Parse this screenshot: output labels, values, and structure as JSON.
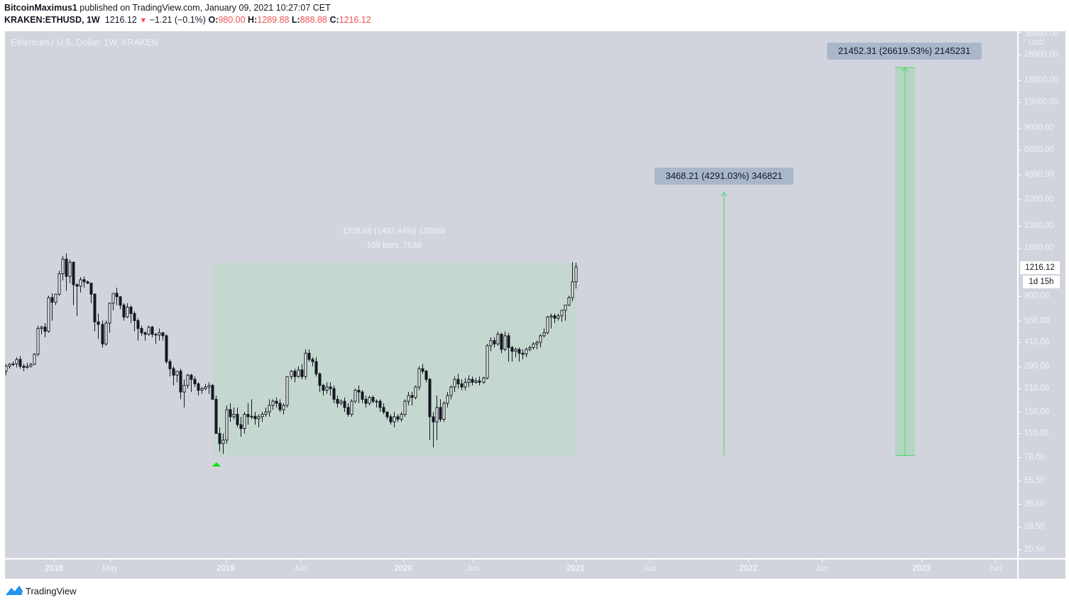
{
  "header": {
    "author": "BitcoinMaximus1",
    "published_text": "published on TradingView.com, January 09, 2021 10:27:07 CET",
    "symbol": "KRAKEN:ETHUSD, 1W",
    "last": "1216.12",
    "change": "−1.21 (−0.1%)",
    "o_label": "O:",
    "o_value": "980.00",
    "h_label": "H:",
    "h_value": "1289.88",
    "l_label": "L:",
    "l_value": "888.88",
    "c_label": "C:",
    "c_value": "1216.12"
  },
  "chart": {
    "symbol_label": "Ethereum / U.S. Dollar, 1W, KRAKEN",
    "currency": "USD",
    "last_price_tag": "1216.12",
    "countdown_tag": "1d 15h",
    "colors": {
      "background": "#d1d4dc",
      "candle": "#131722",
      "measure_fill": "#c5d8cf",
      "projection_green": "#4cd964",
      "callout_bg": "#a9b7cc",
      "down_arrow": "#ef5350",
      "marker": "#00e600"
    }
  },
  "measure": {
    "line1": "1208.88 (1492.44%) 120888",
    "line2": "109 bars, 763d"
  },
  "projections": [
    {
      "label": "3468.21 (4291.03%) 346821"
    },
    {
      "label": "21452.31 (26619.53%) 2145231"
    }
  ],
  "footer": {
    "brand": "TradingView"
  },
  "chart_data": {
    "type": "candlestick",
    "title": "Ethereum / U.S. Dollar, 1W, KRAKEN",
    "xlabel": "",
    "ylabel": "USD",
    "y_scale": "log",
    "price_ticks": [
      "36000.00",
      "26000.00",
      "18000.00",
      "13000.00",
      "9000.00",
      "6600.00",
      "4600.00",
      "3200.00",
      "2200.00",
      "1600.00",
      "800.00",
      "560.00",
      "410.00",
      "290.00",
      "210.00",
      "150.00",
      "110.00",
      "78.00",
      "55.50",
      "39.50",
      "28.50",
      "20.50"
    ],
    "time_ticks": [
      "2018",
      "May",
      "2019",
      "Jun",
      "2020",
      "Jun",
      "2021",
      "Jun",
      "2022",
      "Jun",
      "2023",
      "Jun"
    ],
    "annotations": [
      {
        "type": "price_range_measure",
        "from": 80.0,
        "to": 1288.88,
        "text": "1208.88 (1492.44%) 120888",
        "bars_text": "109 bars, 763d"
      },
      {
        "type": "projection",
        "from": 80.0,
        "to": 3548.21,
        "text": "3468.21 (4291.03%) 346821"
      },
      {
        "type": "projection",
        "from": 80.0,
        "to": 21532.31,
        "text": "21452.31 (26619.53%) 2145231"
      },
      {
        "type": "marker",
        "shape": "triangle-up",
        "date_approx": "Dec 2018",
        "price_approx": 72
      }
    ],
    "ohlc_weekly": [
      [
        270,
        300,
        255,
        290
      ],
      [
        290,
        305,
        280,
        298
      ],
      [
        298,
        310,
        290,
        300
      ],
      [
        300,
        330,
        285,
        320
      ],
      [
        320,
        335,
        280,
        290
      ],
      [
        290,
        300,
        270,
        285
      ],
      [
        285,
        305,
        280,
        290
      ],
      [
        290,
        305,
        285,
        298
      ],
      [
        298,
        350,
        295,
        345
      ],
      [
        345,
        520,
        335,
        500
      ],
      [
        500,
        520,
        460,
        510
      ],
      [
        510,
        540,
        440,
        480
      ],
      [
        480,
        800,
        470,
        780
      ],
      [
        780,
        830,
        560,
        730
      ],
      [
        730,
        800,
        700,
        820
      ],
      [
        820,
        1150,
        800,
        1100
      ],
      [
        1100,
        1420,
        1000,
        1360
      ],
      [
        1360,
        1480,
        860,
        1060
      ],
      [
        1060,
        1350,
        960,
        1300
      ],
      [
        1300,
        1310,
        700,
        940
      ],
      [
        940,
        960,
        600,
        920
      ],
      [
        920,
        1050,
        840,
        1010
      ],
      [
        1010,
        1060,
        900,
        980
      ],
      [
        980,
        1000,
        950,
        960
      ],
      [
        960,
        970,
        720,
        820
      ],
      [
        820,
        830,
        480,
        550
      ],
      [
        550,
        620,
        430,
        530
      ],
      [
        530,
        560,
        380,
        400
      ],
      [
        400,
        560,
        390,
        540
      ],
      [
        540,
        580,
        470,
        720
      ],
      [
        720,
        760,
        650,
        830
      ],
      [
        830,
        900,
        700,
        790
      ],
      [
        790,
        800,
        660,
        700
      ],
      [
        700,
        720,
        560,
        590
      ],
      [
        590,
        720,
        580,
        680
      ],
      [
        680,
        700,
        540,
        620
      ],
      [
        620,
        640,
        480,
        560
      ],
      [
        560,
        580,
        420,
        500
      ],
      [
        500,
        520,
        450,
        470
      ],
      [
        470,
        480,
        420,
        460
      ],
      [
        460,
        520,
        450,
        510
      ],
      [
        510,
        520,
        440,
        460
      ],
      [
        460,
        470,
        400,
        455
      ],
      [
        455,
        500,
        420,
        470
      ],
      [
        470,
        475,
        420,
        450
      ],
      [
        450,
        460,
        300,
        310
      ],
      [
        310,
        320,
        250,
        280
      ],
      [
        280,
        290,
        220,
        255
      ],
      [
        255,
        270,
        230,
        270
      ],
      [
        270,
        280,
        180,
        200
      ],
      [
        200,
        240,
        160,
        220
      ],
      [
        220,
        260,
        210,
        255
      ],
      [
        255,
        260,
        200,
        240
      ],
      [
        240,
        250,
        215,
        225
      ],
      [
        225,
        230,
        190,
        205
      ],
      [
        205,
        215,
        195,
        210
      ],
      [
        210,
        225,
        205,
        215
      ],
      [
        215,
        230,
        195,
        220
      ],
      [
        220,
        225,
        190,
        180
      ],
      [
        180,
        190,
        120,
        110
      ],
      [
        110,
        120,
        85,
        95
      ],
      [
        95,
        110,
        82,
        100
      ],
      [
        100,
        165,
        95,
        155
      ],
      [
        155,
        170,
        130,
        140
      ],
      [
        140,
        160,
        135,
        145
      ],
      [
        145,
        160,
        120,
        125
      ],
      [
        125,
        140,
        105,
        118
      ],
      [
        118,
        150,
        110,
        145
      ],
      [
        145,
        170,
        125,
        140
      ],
      [
        140,
        180,
        135,
        141
      ],
      [
        141,
        150,
        125,
        136
      ],
      [
        136,
        145,
        120,
        140
      ],
      [
        140,
        150,
        130,
        145
      ],
      [
        145,
        160,
        140,
        150
      ],
      [
        150,
        180,
        140,
        165
      ],
      [
        165,
        180,
        155,
        175
      ],
      [
        175,
        185,
        160,
        170
      ],
      [
        170,
        180,
        150,
        155
      ],
      [
        155,
        170,
        145,
        165
      ],
      [
        165,
        250,
        160,
        250
      ],
      [
        250,
        275,
        240,
        270
      ],
      [
        270,
        280,
        230,
        250
      ],
      [
        250,
        290,
        245,
        275
      ],
      [
        275,
        300,
        240,
        250
      ],
      [
        250,
        370,
        240,
        350
      ],
      [
        350,
        370,
        310,
        320
      ],
      [
        320,
        330,
        290,
        310
      ],
      [
        310,
        330,
        250,
        260
      ],
      [
        260,
        265,
        200,
        220
      ],
      [
        220,
        225,
        190,
        205
      ],
      [
        205,
        230,
        195,
        215
      ],
      [
        215,
        230,
        190,
        210
      ],
      [
        210,
        220,
        170,
        180
      ],
      [
        180,
        190,
        160,
        170
      ],
      [
        170,
        180,
        165,
        175
      ],
      [
        175,
        185,
        150,
        160
      ],
      [
        160,
        170,
        140,
        145
      ],
      [
        145,
        180,
        140,
        175
      ],
      [
        175,
        210,
        170,
        205
      ],
      [
        205,
        220,
        170,
        200
      ],
      [
        200,
        205,
        170,
        180
      ],
      [
        180,
        190,
        160,
        170
      ],
      [
        170,
        190,
        165,
        185
      ],
      [
        185,
        190,
        170,
        175
      ],
      [
        175,
        180,
        160,
        175
      ],
      [
        175,
        180,
        150,
        160
      ],
      [
        160,
        170,
        145,
        150
      ],
      [
        150,
        140,
        135,
        140
      ],
      [
        140,
        145,
        125,
        130
      ],
      [
        130,
        150,
        120,
        140
      ],
      [
        140,
        145,
        130,
        135
      ],
      [
        135,
        150,
        130,
        145
      ],
      [
        145,
        180,
        140,
        175
      ],
      [
        175,
        200,
        165,
        190
      ],
      [
        190,
        200,
        165,
        185
      ],
      [
        185,
        220,
        180,
        215
      ],
      [
        215,
        290,
        205,
        280
      ],
      [
        280,
        300,
        260,
        270
      ],
      [
        270,
        275,
        230,
        240
      ],
      [
        240,
        245,
        100,
        140
      ],
      [
        140,
        150,
        90,
        130
      ],
      [
        130,
        190,
        100,
        160
      ],
      [
        160,
        180,
        130,
        135
      ],
      [
        135,
        175,
        130,
        170
      ],
      [
        170,
        200,
        160,
        190
      ],
      [
        190,
        220,
        180,
        215
      ],
      [
        215,
        250,
        200,
        240
      ],
      [
        240,
        260,
        210,
        225
      ],
      [
        225,
        240,
        205,
        215
      ],
      [
        215,
        245,
        205,
        230
      ],
      [
        230,
        255,
        215,
        240
      ],
      [
        240,
        250,
        220,
        230
      ],
      [
        230,
        245,
        225,
        235
      ],
      [
        235,
        250,
        220,
        230
      ],
      [
        230,
        250,
        225,
        245
      ],
      [
        245,
        400,
        240,
        390
      ],
      [
        390,
        440,
        360,
        420
      ],
      [
        420,
        440,
        380,
        400
      ],
      [
        400,
        480,
        390,
        460
      ],
      [
        460,
        470,
        350,
        370
      ],
      [
        370,
        480,
        360,
        450
      ],
      [
        450,
        470,
        310,
        380
      ],
      [
        380,
        390,
        310,
        360
      ],
      [
        360,
        380,
        330,
        370
      ],
      [
        370,
        380,
        310,
        350
      ],
      [
        350,
        370,
        320,
        345
      ],
      [
        345,
        380,
        330,
        370
      ],
      [
        370,
        390,
        360,
        380
      ],
      [
        380,
        410,
        370,
        400
      ],
      [
        400,
        420,
        370,
        410
      ],
      [
        410,
        460,
        380,
        450
      ],
      [
        450,
        500,
        440,
        470
      ],
      [
        470,
        600,
        460,
        590
      ],
      [
        590,
        620,
        500,
        600
      ],
      [
        600,
        620,
        540,
        580
      ],
      [
        580,
        620,
        560,
        600
      ],
      [
        600,
        640,
        550,
        650
      ],
      [
        650,
        680,
        560,
        700
      ],
      [
        700,
        800,
        690,
        780
      ],
      [
        780,
        1300,
        740,
        980
      ],
      [
        980,
        1290,
        889,
        1216
      ]
    ]
  }
}
